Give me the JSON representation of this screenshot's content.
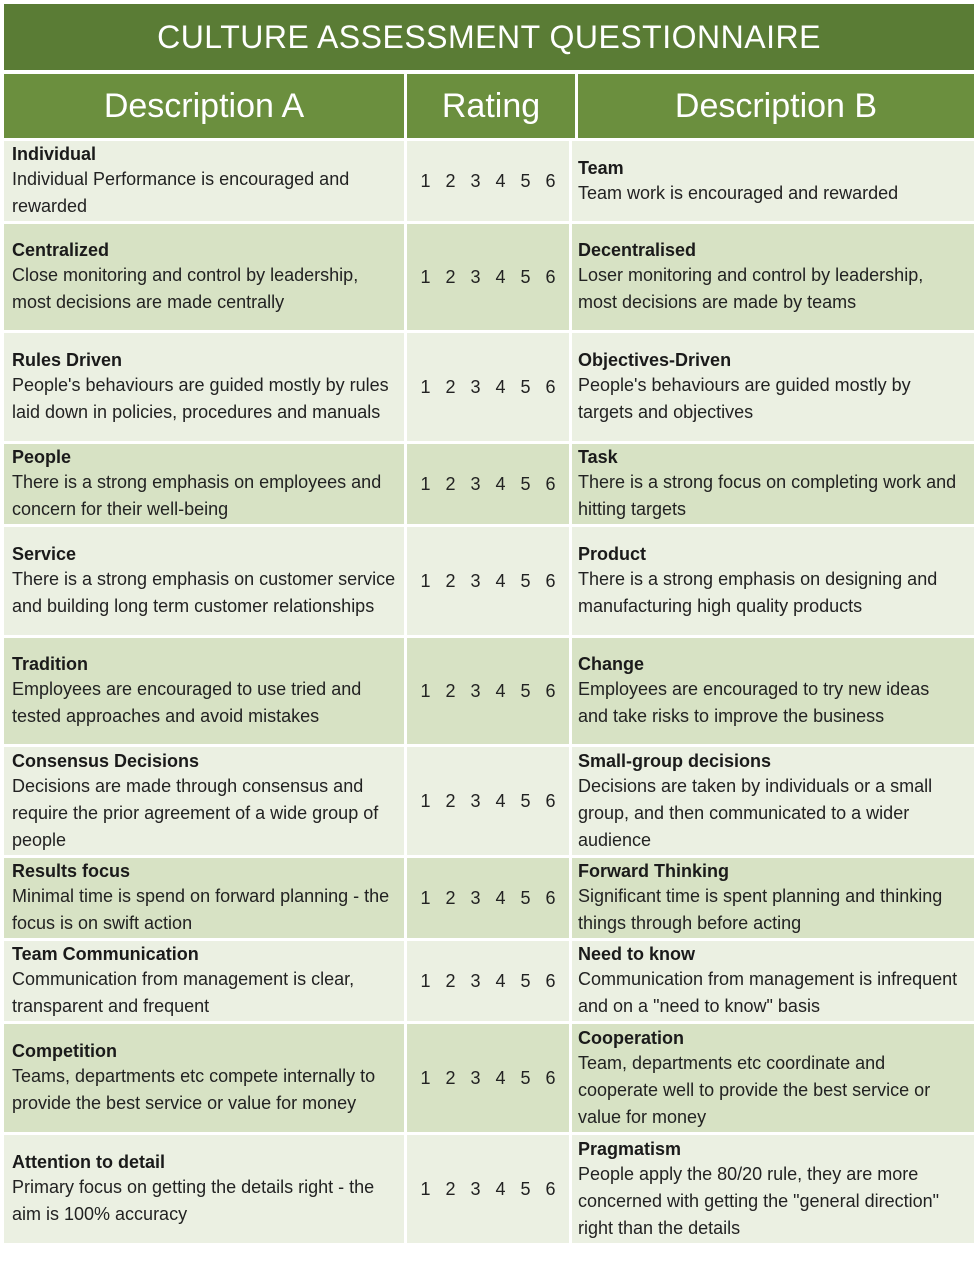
{
  "title": "CULTURE ASSESSMENT QUESTIONNAIRE",
  "headers": {
    "a": "Description A",
    "rating": "Rating",
    "b": "Description B"
  },
  "scale": [
    "1",
    "2",
    "3",
    "4",
    "5",
    "6"
  ],
  "rows": [
    {
      "a_label": "Individual",
      "a_text": "Individual Performance is encouraged and rewarded",
      "b_label": "Team",
      "b_text": "Team work is encouraged and rewarded"
    },
    {
      "a_label": "Centralized",
      "a_text": "Close monitoring and control by leadership, most decisions are made centrally",
      "b_label": "Decentralised",
      "b_text": "Loser monitoring and control by leadership, most decisions are made by teams"
    },
    {
      "a_label": "Rules Driven",
      "a_text": "People's behaviours are guided mostly by rules laid down in policies, procedures and manuals",
      "b_label": "Objectives-Driven",
      "b_text": "People's behaviours are guided mostly by targets and objectives"
    },
    {
      "a_label": "People",
      "a_text": "There is a strong emphasis on employees and concern for their well-being",
      "b_label": "Task",
      "b_text": "There is a strong focus on completing work and hitting targets"
    },
    {
      "a_label": "Service",
      "a_text": "There is a strong emphasis on customer service and building long term customer relationships",
      "b_label": "Product",
      "b_text": "There is a strong emphasis on designing and manufacturing high quality products"
    },
    {
      "a_label": "Tradition",
      "a_text": "Employees are encouraged to use tried and tested approaches and avoid mistakes",
      "b_label": "Change",
      "b_text": "Employees are encouraged to try new ideas and take risks to improve the business"
    },
    {
      "a_label": "Consensus Decisions",
      "a_text": "Decisions are made through consensus and require the prior agreement of a wide group of people",
      "b_label": "Small-group decisions",
      "b_text": "Decisions are taken by individuals or a small group, and then communicated to a wider audience"
    },
    {
      "a_label": "Results focus",
      "a_text": "Minimal time is spend on forward planning - the focus is on swift action",
      "b_label": "Forward Thinking",
      "b_text": "Significant time is spent planning and thinking things through before acting"
    },
    {
      "a_label": "Team Communication",
      "a_text": "Communication from management is clear, transparent and frequent",
      "b_label": "Need to know",
      "b_text": "Communication from management is infrequent and on a \"need to know\" basis"
    },
    {
      "a_label": "Competition",
      "a_text": "Teams, departments etc compete internally to provide the best service or value for money",
      "b_label": "Cooperation",
      "b_text": "Team, departments etc coordinate and cooperate well to provide the best service or value for money"
    },
    {
      "a_label": "Attention to detail",
      "a_text": "Primary focus on getting the details right - the aim is 100% accuracy",
      "b_label": "Pragmatism",
      "b_text": "People apply the 80/20 rule, they are more concerned with getting the \"general direction\" right than the details"
    }
  ]
}
